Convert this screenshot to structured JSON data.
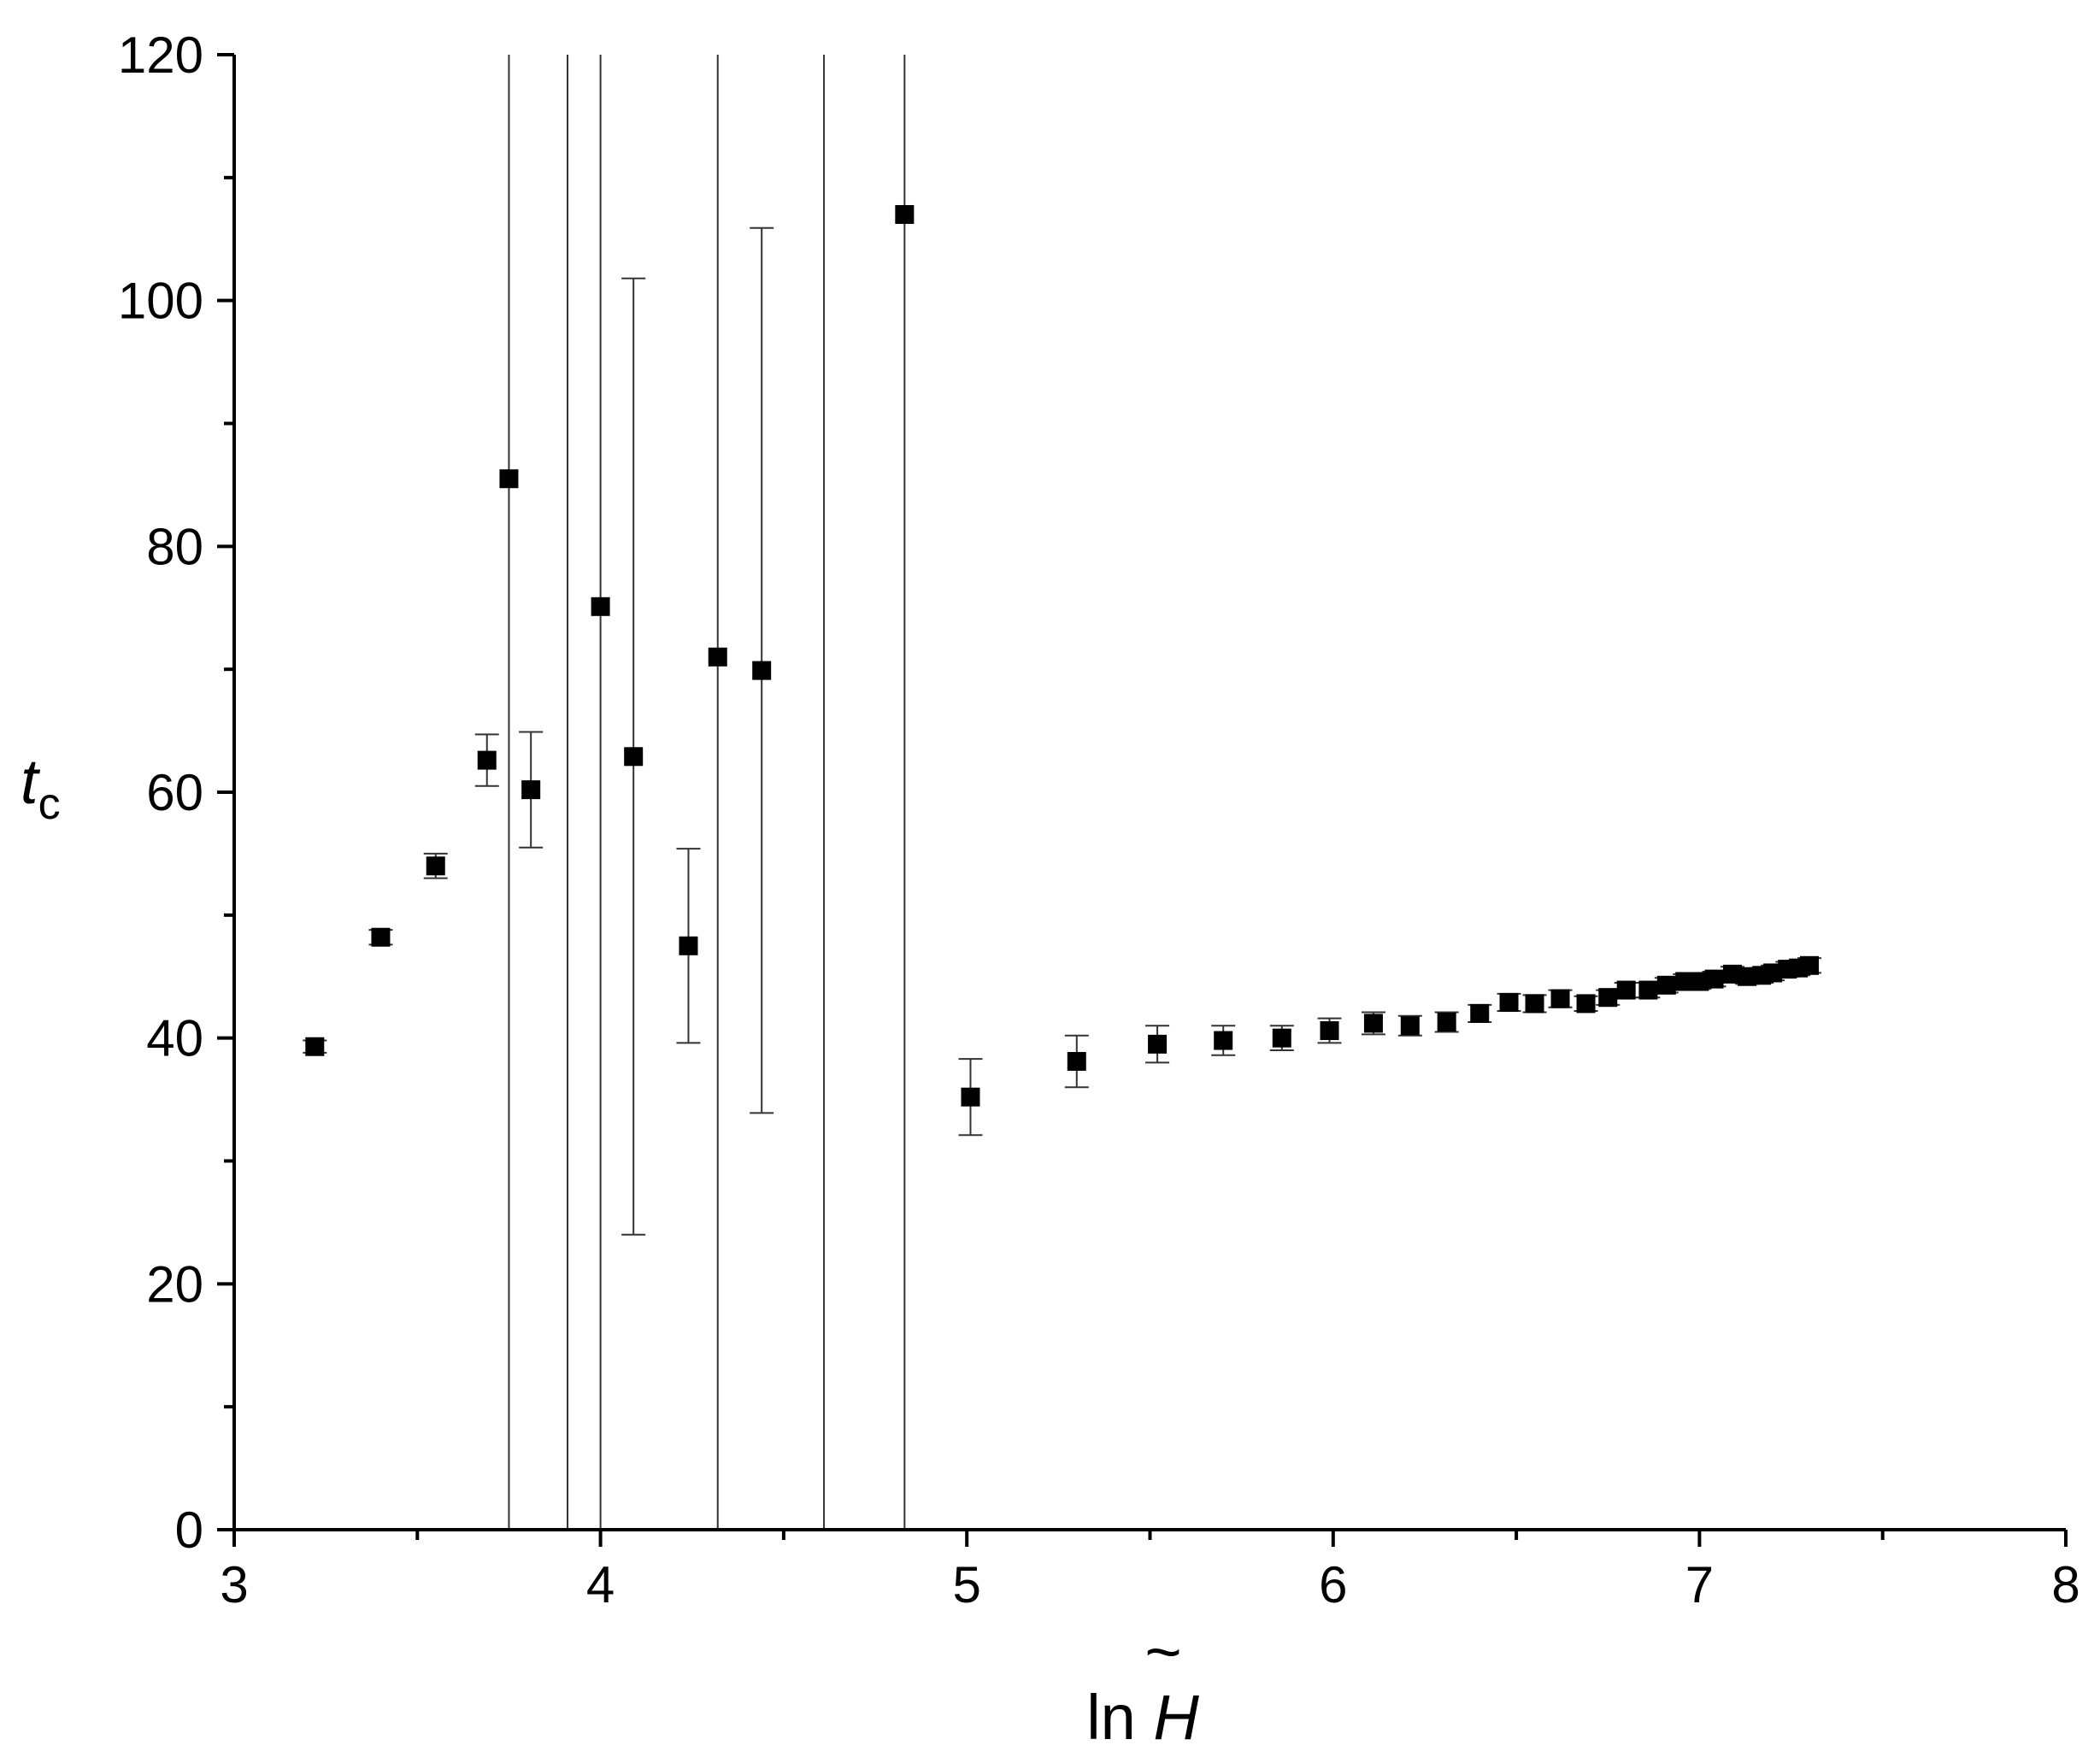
{
  "chart_data": {
    "type": "scatter",
    "xlabel": {
      "prefix": "ln ",
      "symbol": "H",
      "accent": "~"
    },
    "ylabel": {
      "main": "t",
      "sub": "c"
    },
    "xlim": [
      3,
      8
    ],
    "ylim": [
      0,
      120
    ],
    "xticks": [
      "3",
      "4",
      "5",
      "6",
      "7",
      "8"
    ],
    "yticks": [
      "0",
      "20",
      "40",
      "60",
      "80",
      "100",
      "120"
    ],
    "grid": false,
    "marker": "filled-square",
    "points": [
      {
        "x": 3.22,
        "y": 39.3,
        "lo": 38.8,
        "hi": 39.8
      },
      {
        "x": 3.4,
        "y": 48.2,
        "lo": 47.6,
        "hi": 48.8
      },
      {
        "x": 3.55,
        "y": 54.0,
        "lo": 53.0,
        "hi": 55.0
      },
      {
        "x": 3.69,
        "y": 62.6,
        "lo": 60.5,
        "hi": 64.7
      },
      {
        "x": 3.75,
        "y": 85.5,
        "lo": 0,
        "hi": 120
      },
      {
        "x": 3.81,
        "y": 60.2,
        "lo": 55.5,
        "hi": 64.9
      },
      {
        "x": 3.91,
        "y": null,
        "lo": 0,
        "hi": 120
      },
      {
        "x": 4.0,
        "y": 75.1,
        "lo": 0,
        "hi": 120
      },
      {
        "x": 4.09,
        "y": 62.9,
        "lo": 24.0,
        "hi": 101.8
      },
      {
        "x": 4.24,
        "y": 47.5,
        "lo": 39.6,
        "hi": 55.4
      },
      {
        "x": 4.32,
        "y": 71.0,
        "lo": 0,
        "hi": 120
      },
      {
        "x": 4.44,
        "y": 69.9,
        "lo": 33.9,
        "hi": 105.9
      },
      {
        "x": 4.61,
        "y": null,
        "lo": 0,
        "hi": 120
      },
      {
        "x": 4.83,
        "y": 107.0,
        "lo": 0,
        "hi": 120
      },
      {
        "x": 5.01,
        "y": 35.2,
        "lo": 32.1,
        "hi": 38.3
      },
      {
        "x": 5.3,
        "y": 38.1,
        "lo": 36.0,
        "hi": 40.2
      },
      {
        "x": 5.52,
        "y": 39.5,
        "lo": 38.0,
        "hi": 41.0
      },
      {
        "x": 5.7,
        "y": 39.8,
        "lo": 38.6,
        "hi": 41.0
      },
      {
        "x": 5.86,
        "y": 40.0,
        "lo": 39.0,
        "hi": 41.0
      },
      {
        "x": 5.99,
        "y": 40.6,
        "lo": 39.6,
        "hi": 41.6
      },
      {
        "x": 6.11,
        "y": 41.2,
        "lo": 40.3,
        "hi": 42.1
      },
      {
        "x": 6.21,
        "y": 41.0,
        "lo": 40.2,
        "hi": 41.8
      },
      {
        "x": 6.31,
        "y": 41.3,
        "lo": 40.5,
        "hi": 42.1
      },
      {
        "x": 6.4,
        "y": 42.0,
        "lo": 41.3,
        "hi": 42.7
      },
      {
        "x": 6.48,
        "y": 42.9,
        "lo": 42.2,
        "hi": 43.6
      },
      {
        "x": 6.55,
        "y": 42.8,
        "lo": 42.1,
        "hi": 43.5
      },
      {
        "x": 6.62,
        "y": 43.2,
        "lo": 42.5,
        "hi": 43.9
      },
      {
        "x": 6.69,
        "y": 42.8,
        "lo": 42.2,
        "hi": 43.4
      },
      {
        "x": 6.75,
        "y": 43.3,
        "lo": 42.7,
        "hi": 43.9
      },
      {
        "x": 6.8,
        "y": 43.9,
        "lo": 43.3,
        "hi": 44.5
      },
      {
        "x": 6.86,
        "y": 43.9,
        "lo": 43.3,
        "hi": 44.5
      },
      {
        "x": 6.91,
        "y": 44.3,
        "lo": 43.7,
        "hi": 44.9
      },
      {
        "x": 6.96,
        "y": 44.6,
        "lo": 44.0,
        "hi": 45.2
      },
      {
        "x": 7.0,
        "y": 44.6,
        "lo": 44.0,
        "hi": 45.2
      },
      {
        "x": 7.04,
        "y": 44.8,
        "lo": 44.2,
        "hi": 45.4
      },
      {
        "x": 7.09,
        "y": 45.2,
        "lo": 44.6,
        "hi": 45.8
      },
      {
        "x": 7.13,
        "y": 45.0,
        "lo": 44.4,
        "hi": 45.6
      },
      {
        "x": 7.17,
        "y": 45.1,
        "lo": 44.5,
        "hi": 45.7
      },
      {
        "x": 7.2,
        "y": 45.3,
        "lo": 44.7,
        "hi": 45.9
      },
      {
        "x": 7.24,
        "y": 45.6,
        "lo": 45.0,
        "hi": 46.2
      },
      {
        "x": 7.27,
        "y": 45.7,
        "lo": 45.1,
        "hi": 46.3
      },
      {
        "x": 7.3,
        "y": 45.9,
        "lo": 45.3,
        "hi": 46.5
      }
    ]
  }
}
